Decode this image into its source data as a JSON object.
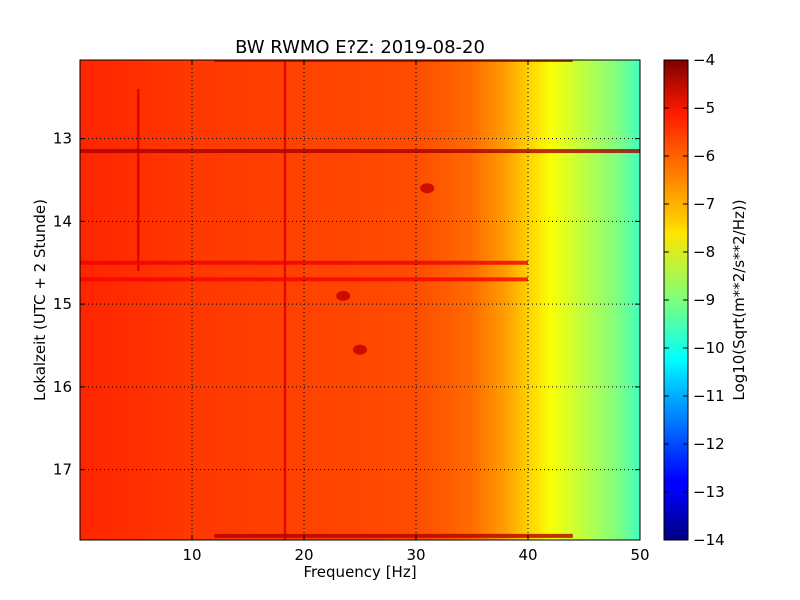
{
  "chart_data": {
    "type": "heatmap",
    "title": "BW RWMO E?Z: 2019-08-20",
    "xlabel": "Frequency [Hz]",
    "ylabel": "Lokalzeit (UTC + 2 Stunde)",
    "xlim": [
      0,
      50
    ],
    "ylim": [
      12.05,
      17.85
    ],
    "y_inverted": true,
    "grid": true,
    "grid_style": "dotted",
    "x_ticks": [
      10,
      20,
      30,
      40,
      50
    ],
    "y_ticks": [
      13,
      14,
      15,
      16,
      17
    ],
    "colormap": "jet",
    "colorbar": {
      "label": "Log10(Sqrt(m**2/s**2/Hz))",
      "range": [
        -14,
        -4
      ],
      "ticks": [
        -4,
        -5,
        -6,
        -7,
        -8,
        -9,
        -10,
        -11,
        -12,
        -13,
        -14
      ]
    },
    "spectrum_profile": [
      {
        "freq": 0,
        "value": -5.6
      },
      {
        "freq": 10,
        "value": -5.8
      },
      {
        "freq": 20,
        "value": -5.9
      },
      {
        "freq": 30,
        "value": -6.0
      },
      {
        "freq": 35,
        "value": -6.3
      },
      {
        "freq": 38,
        "value": -6.8
      },
      {
        "freq": 40,
        "value": -7.3
      },
      {
        "freq": 42,
        "value": -7.8
      },
      {
        "freq": 45,
        "value": -8.4
      },
      {
        "freq": 48,
        "value": -9.0
      },
      {
        "freq": 50,
        "value": -9.6
      }
    ],
    "features": [
      {
        "kind": "vertical-line",
        "freq": 18.3,
        "value": -4.9
      },
      {
        "kind": "vertical-line",
        "freq": 5.2,
        "from": 12.4,
        "to": 14.6,
        "value": -4.8
      },
      {
        "kind": "horizontal-band",
        "time": 12.05,
        "from_freq": 12,
        "to_freq": 44,
        "value": -4.6
      },
      {
        "kind": "horizontal-band",
        "time": 13.15,
        "from_freq": 0,
        "to_freq": 50,
        "value": -4.4
      },
      {
        "kind": "horizontal-band",
        "time": 14.5,
        "from_freq": 0,
        "to_freq": 40,
        "value": -5.1
      },
      {
        "kind": "horizontal-band",
        "time": 14.7,
        "from_freq": 0,
        "to_freq": 40,
        "value": -5.2
      },
      {
        "kind": "horizontal-band",
        "time": 17.8,
        "from_freq": 12,
        "to_freq": 44,
        "value": -4.5
      },
      {
        "kind": "patch",
        "freq": 23.5,
        "time": 14.9,
        "value": -4.7
      },
      {
        "kind": "patch",
        "freq": 25.0,
        "time": 15.55,
        "value": -4.7
      },
      {
        "kind": "patch",
        "freq": 31.0,
        "time": 13.6,
        "value": -4.7
      }
    ]
  }
}
